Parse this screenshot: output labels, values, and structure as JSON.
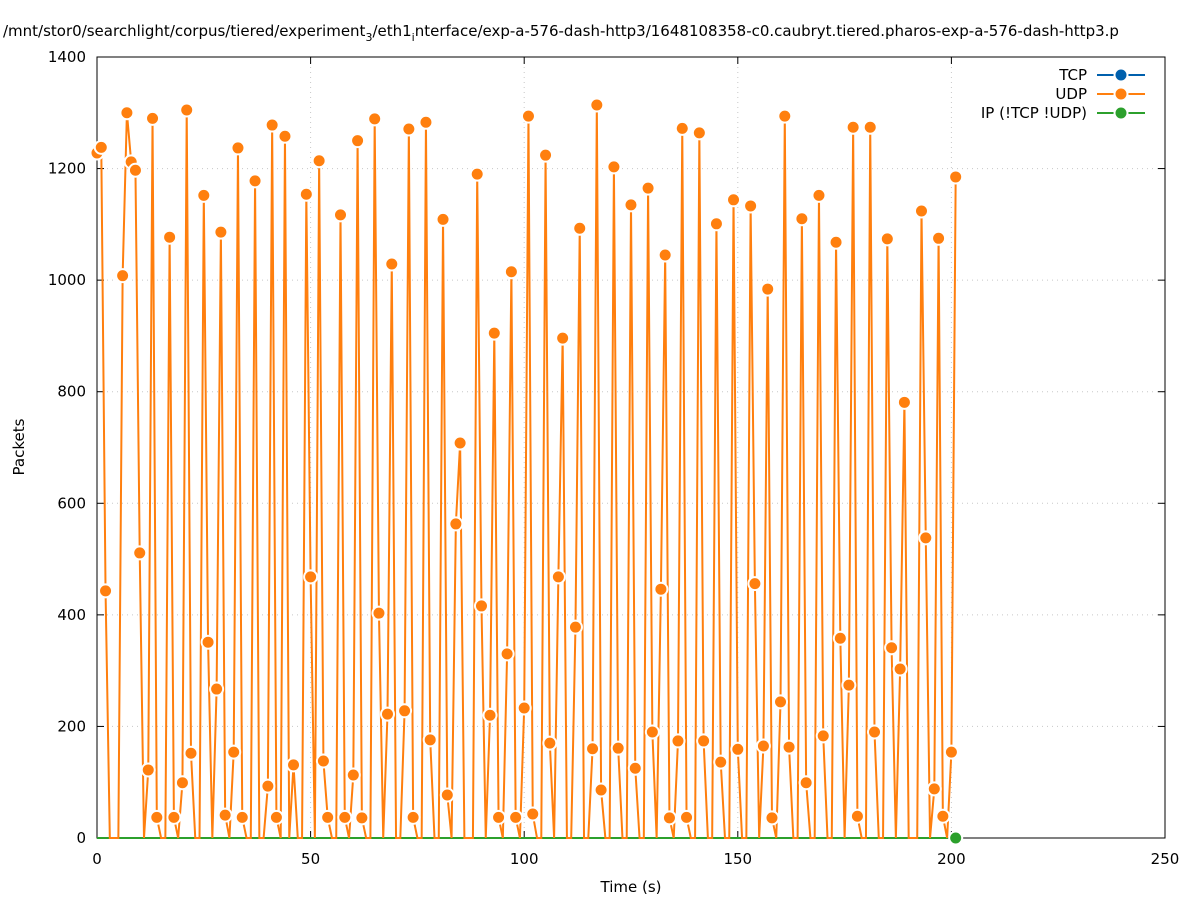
{
  "chart_data": {
    "type": "line",
    "title": "/mnt/stor0/searchlight/corpus/tiered/experiment_3/eth1_interface/exp-a-576-dash-http3/1648108358-c0.caubryt.tiered.pharos-exp-a-576-dash-http3.p",
    "xlabel": "Time (s)",
    "ylabel": "Packets",
    "xlim": [
      0,
      250
    ],
    "ylim": [
      0,
      1400
    ],
    "xticks": [
      0,
      50,
      100,
      150,
      200,
      250
    ],
    "yticks": [
      0,
      200,
      400,
      600,
      800,
      1000,
      1200,
      1400
    ],
    "grid": true,
    "legend_position": "top-right",
    "series": [
      {
        "name": "TCP",
        "color": "#0060ad",
        "x_start": 0,
        "x_step": 1,
        "values": []
      },
      {
        "name": "UDP",
        "color": "#ff7f0e",
        "x_start": 0,
        "x_step": 1,
        "values": [
          1228,
          1238,
          443,
          0,
          0,
          0,
          1008,
          1300,
          1212,
          1197,
          511,
          0,
          122,
          1290,
          37,
          0,
          0,
          1077,
          37,
          0,
          99,
          1305,
          152,
          0,
          0,
          1152,
          351,
          0,
          267,
          1086,
          41,
          0,
          154,
          1237,
          37,
          0,
          0,
          1178,
          0,
          0,
          93,
          1278,
          37,
          0,
          1258,
          0,
          131,
          0,
          0,
          1154,
          468,
          0,
          1214,
          138,
          37,
          0,
          0,
          1117,
          37,
          0,
          113,
          1250,
          36,
          0,
          0,
          1289,
          403,
          0,
          222,
          1029,
          0,
          0,
          228,
          1271,
          37,
          0,
          0,
          1283,
          176,
          0,
          0,
          1109,
          77,
          0,
          563,
          708,
          0,
          0,
          0,
          1190,
          416,
          0,
          220,
          905,
          37,
          0,
          330,
          1015,
          37,
          0,
          233,
          1294,
          43,
          0,
          0,
          1224,
          170,
          0,
          468,
          896,
          0,
          0,
          378,
          1093,
          0,
          0,
          160,
          1314,
          86,
          0,
          0,
          1203,
          161,
          0,
          0,
          1135,
          125,
          0,
          0,
          1165,
          190,
          0,
          446,
          1045,
          36,
          0,
          174,
          1272,
          37,
          0,
          0,
          1264,
          174,
          0,
          0,
          1101,
          136,
          0,
          0,
          1144,
          159,
          0,
          0,
          1133,
          456,
          0,
          165,
          984,
          36,
          0,
          244,
          1294,
          163,
          0,
          0,
          1110,
          99,
          0,
          0,
          1152,
          183,
          0,
          0,
          1068,
          358,
          0,
          274,
          1274,
          39,
          0,
          0,
          1274,
          190,
          0,
          0,
          1074,
          341,
          0,
          303,
          781,
          0,
          0,
          0,
          1124,
          538,
          0,
          88,
          1075,
          39,
          0,
          154,
          1185
        ]
      },
      {
        "name": "IP (!TCP  !UDP)",
        "color": "#2ca02c",
        "x_start": 0,
        "x_step": 1,
        "values": [
          0
        ],
        "marker_points": [
          [
            201,
            0
          ]
        ]
      }
    ]
  }
}
